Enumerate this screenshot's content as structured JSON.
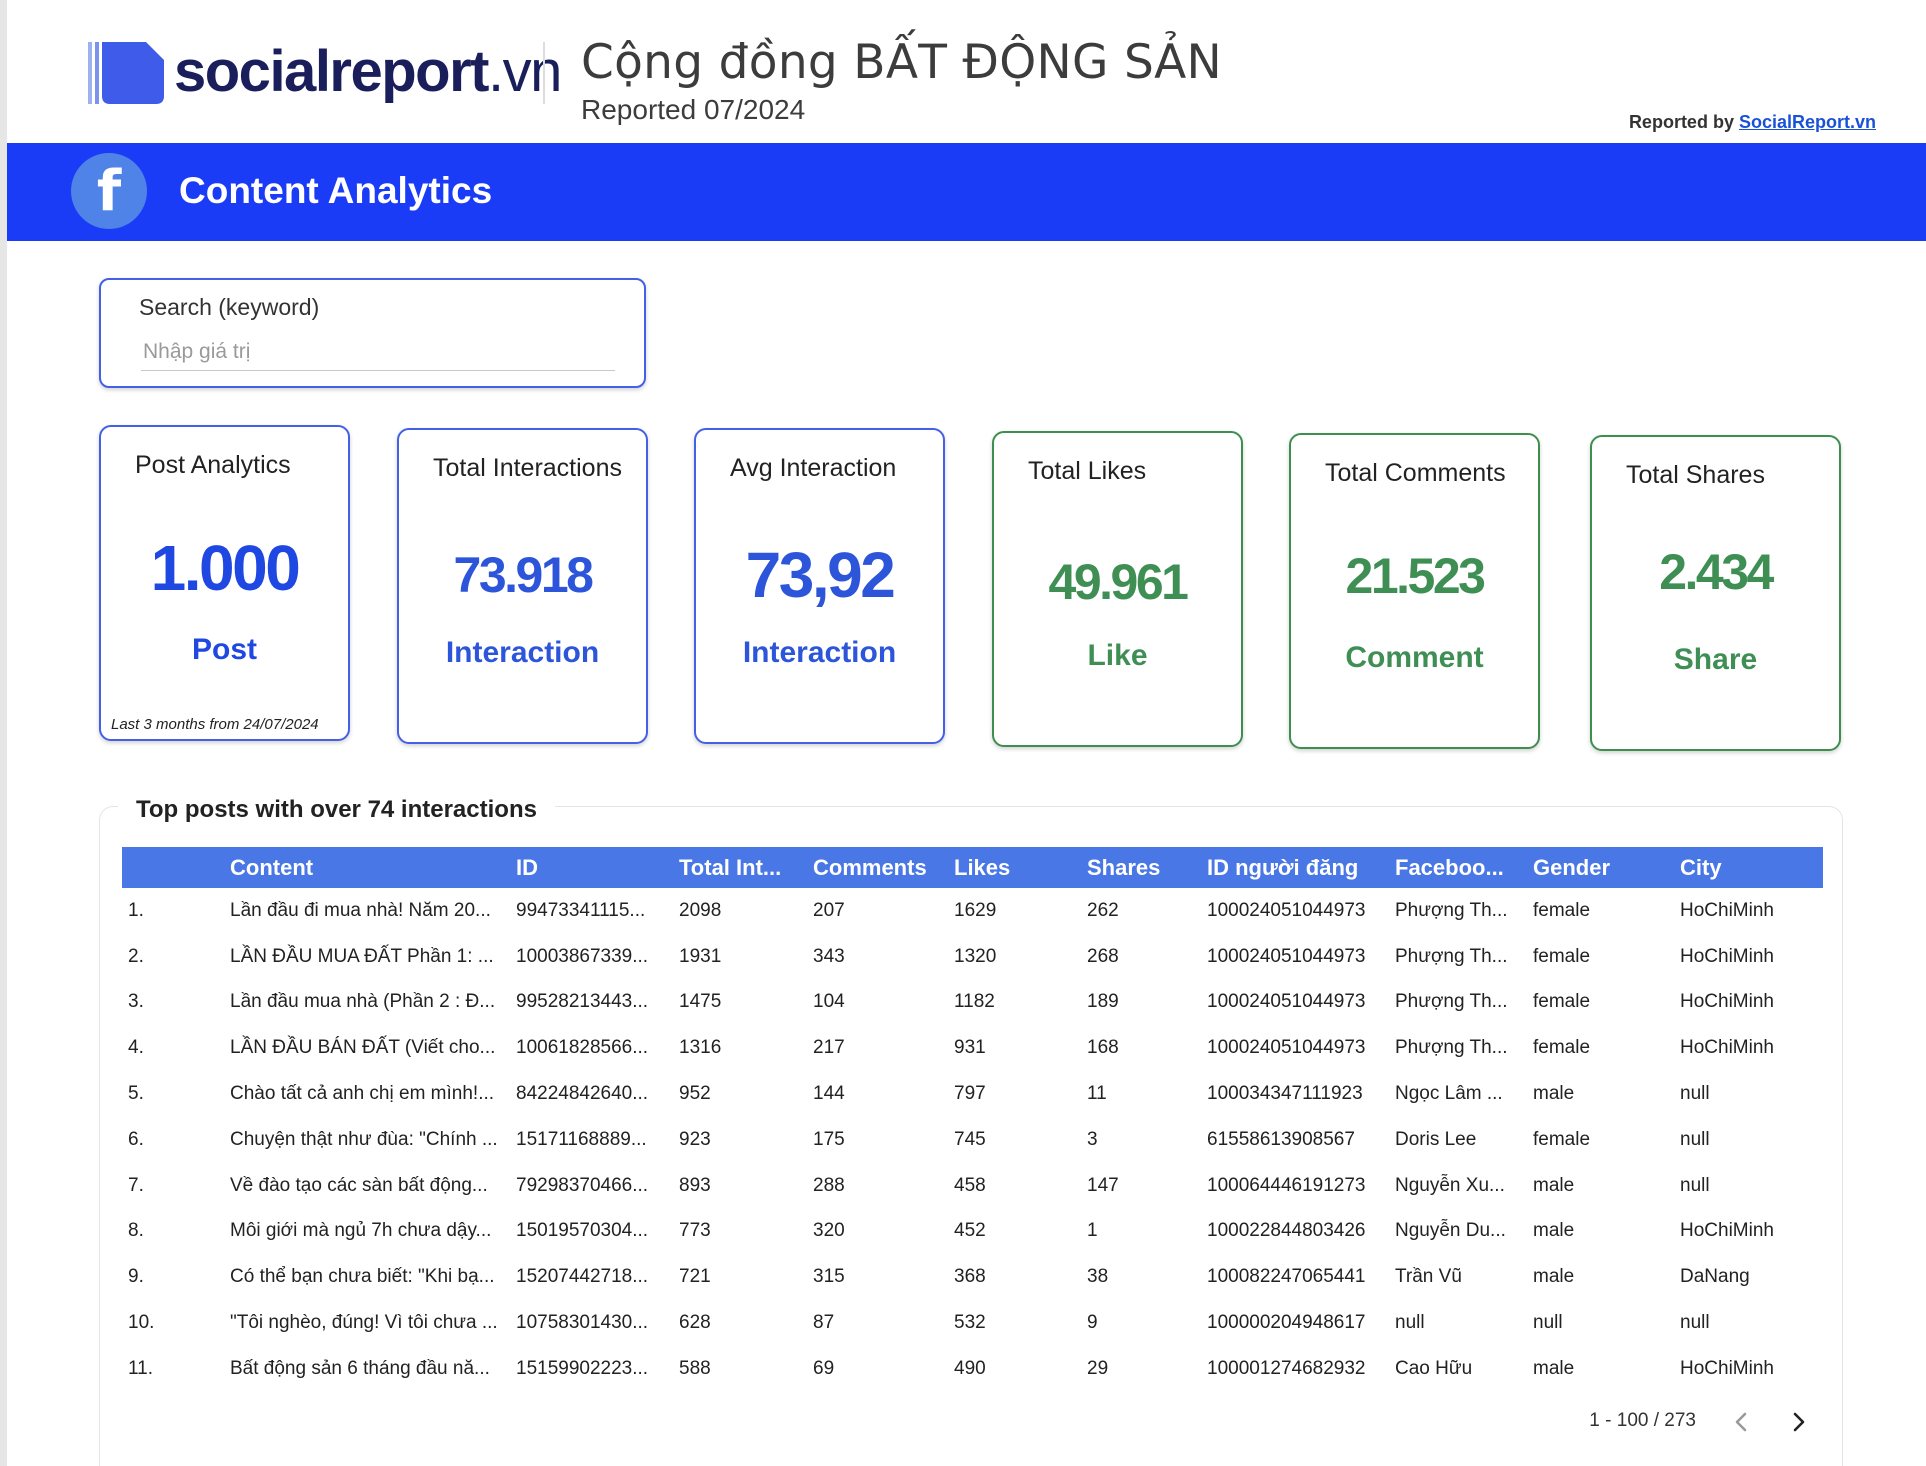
{
  "header": {
    "logo_text": "socialreport",
    "logo_tld": ".vn",
    "title": "Cộng đồng BẤT ĐỘNG SẢN",
    "subtitle": "Reported 07/2024",
    "reported_by_label": "Reported by",
    "reported_by_link": "SocialReport.vn"
  },
  "banner": {
    "icon": "facebook-icon",
    "icon_glyph": "f",
    "title": "Content Analytics",
    "color": "#1b3cf6"
  },
  "search": {
    "label": "Search (keyword)",
    "placeholder": "Nhập giá trị",
    "value": ""
  },
  "stats": [
    {
      "title": "Post Analytics",
      "value": "1.000",
      "unit": "Post",
      "footnote": "Last 3 months from 24/07/2024"
    },
    {
      "title": "Total Interactions",
      "value": "73.918",
      "unit": "Interaction"
    },
    {
      "title": "Avg Interaction",
      "value": "73,92",
      "unit": "Interaction"
    },
    {
      "title": "Total Likes",
      "value": "49.961",
      "unit": "Like"
    },
    {
      "title": "Total Comments",
      "value": "21.523",
      "unit": "Comment"
    },
    {
      "title": "Total Shares",
      "value": "2.434",
      "unit": "Share"
    }
  ],
  "colors": {
    "accent_blue": "#1f47e2",
    "accent_green": "#3f8f55",
    "table_header": "#4a77e6"
  },
  "table": {
    "title": "Top posts with over 74 interactions",
    "columns": [
      "Content",
      "ID",
      "Total Int...",
      "Comments",
      "Likes",
      "Shares",
      "ID người đăng",
      "Faceboo...",
      "Gender",
      "City"
    ],
    "rows": [
      [
        "1.",
        "Lần đầu đi mua nhà! Năm 20...",
        "99473341115...",
        "2098",
        "207",
        "1629",
        "262",
        "100024051044973",
        "Phượng Th...",
        "female",
        "HoChiMinh"
      ],
      [
        "2.",
        "LẦN ĐẦU MUA ĐẤT Phần 1: ...",
        "10003867339...",
        "1931",
        "343",
        "1320",
        "268",
        "100024051044973",
        "Phượng Th...",
        "female",
        "HoChiMinh"
      ],
      [
        "3.",
        "Lần đầu mua nhà (Phần 2 : Đ...",
        "99528213443...",
        "1475",
        "104",
        "1182",
        "189",
        "100024051044973",
        "Phượng Th...",
        "female",
        "HoChiMinh"
      ],
      [
        "4.",
        "LẦN ĐẦU BÁN ĐẤT (Viết cho...",
        "10061828566...",
        "1316",
        "217",
        "931",
        "168",
        "100024051044973",
        "Phượng Th...",
        "female",
        "HoChiMinh"
      ],
      [
        "5.",
        "Chào tất cả anh chị em mình!...",
        "84224842640...",
        "952",
        "144",
        "797",
        "11",
        "100034347111923",
        "Ngọc Lâm ...",
        "male",
        "null"
      ],
      [
        "6.",
        "Chuyện thật như đùa: \"Chính ...",
        "15171168889...",
        "923",
        "175",
        "745",
        "3",
        "61558613908567",
        "Doris Lee",
        "female",
        "null"
      ],
      [
        "7.",
        "Về đào tạo các sàn bất động...",
        "79298370466...",
        "893",
        "288",
        "458",
        "147",
        "100064446191273",
        "Nguyễn Xu...",
        "male",
        "null"
      ],
      [
        "8.",
        "Môi giới mà ngủ 7h chưa dậy...",
        "15019570304...",
        "773",
        "320",
        "452",
        "1",
        "100022844803426",
        "Nguyễn Du...",
        "male",
        "HoChiMinh"
      ],
      [
        "9.",
        "Có thể bạn chưa biết: \"Khi bạ...",
        "15207442718...",
        "721",
        "315",
        "368",
        "38",
        "100082247065441",
        "Trần Vũ",
        "male",
        "DaNang"
      ],
      [
        "10.",
        "\"Tôi nghèo, đúng! Vì tôi chưa ...",
        "10758301430...",
        "628",
        "87",
        "532",
        "9",
        "100000204948617",
        "null",
        "null",
        "null"
      ],
      [
        "11.",
        "Bất động sản 6 tháng đầu nă...",
        "15159902223...",
        "588",
        "69",
        "490",
        "29",
        "100001274682932",
        "Cao Hữu",
        "male",
        "HoChiMinh"
      ]
    ]
  },
  "pagination": {
    "range": "1 - 100 / 273",
    "prev_icon": "chevron-left-icon",
    "next_icon": "chevron-right-icon"
  }
}
